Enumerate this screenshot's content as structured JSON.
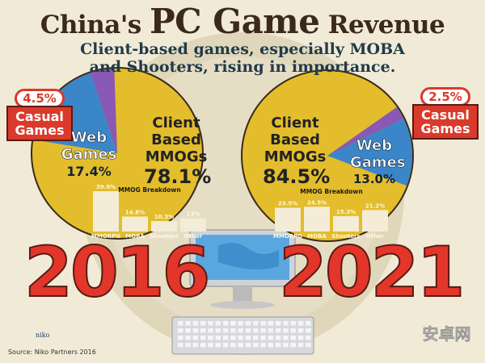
{
  "header": {
    "title_pre": "China's ",
    "title_big": "PC Game",
    "title_post": " Revenue",
    "subtitle_line1": "Client-based games, especially MOBA",
    "subtitle_line2": "and Shooters, rising in importance."
  },
  "chart_data": [
    {
      "type": "pie",
      "year": "2016",
      "slices": [
        {
          "name": "Client Based MMOGs",
          "value": 78.1
        },
        {
          "name": "Web Games",
          "value": 17.4
        },
        {
          "name": "Casual Games",
          "value": 4.5
        }
      ],
      "breakdown": {
        "type": "bar",
        "title": "MMOG Breakdown",
        "categories": [
          "MMORPG",
          "MOBA",
          "Shooters",
          "Other"
        ],
        "values": [
          39.9,
          14.8,
          10.3,
          13
        ],
        "labels": [
          "39.9%",
          "14.8%",
          "10.3%",
          "13%"
        ]
      }
    },
    {
      "type": "pie",
      "year": "2021",
      "slices": [
        {
          "name": "Client Based MMOGs",
          "value": 84.5
        },
        {
          "name": "Web Games",
          "value": 13.0
        },
        {
          "name": "Casual Games",
          "value": 2.5
        }
      ],
      "breakdown": {
        "type": "bar",
        "title": "MMOG Breakdown",
        "categories": [
          "MMORPG",
          "MOBA",
          "Shooters",
          "Other"
        ],
        "values": [
          23.5,
          24.5,
          15.3,
          21.2
        ],
        "labels": [
          "23.5%",
          "24.5%",
          "15.3%",
          "21.2%"
        ]
      }
    }
  ],
  "labels": {
    "left": {
      "casual_pct": "4.5%",
      "casual": "Casual Games",
      "web": "Web Games",
      "web_pct": "17.4%",
      "client": "Client Based MMOGs",
      "client_pct": "78.1%"
    },
    "right": {
      "casual_pct": "2.5%",
      "casual": "Casual Games",
      "web": "Web Games",
      "web_pct": "13.0%",
      "client": "Client Based MMOGs",
      "client_pct": "84.5%"
    }
  },
  "colors": {
    "mmog": "#e3bd2c",
    "web": "#3a86c8",
    "casual": "#8a58b5",
    "bar": "#f4ecd6",
    "year": "#e2362a",
    "callout": "#d93a2b"
  },
  "footer": {
    "source": "Source: Niko Partners 2016",
    "logo": "niko",
    "watermark": "安卓网 www.hiapk.com 百度旗下品牌"
  }
}
